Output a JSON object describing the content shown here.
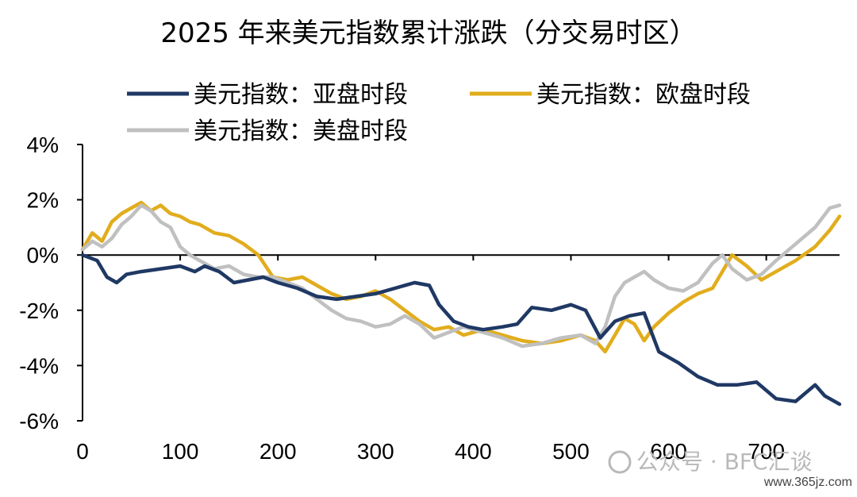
{
  "title": "2025 年来美元指数累计涨跌（分交易时区）",
  "watermark": {
    "text": "公众号 · BFC汇谈",
    "url": "www.365jz.com"
  },
  "chart_data": {
    "type": "line",
    "title": "2025 年来美元指数累计涨跌（分交易时区）",
    "xlabel": "",
    "ylabel": "",
    "xlim": [
      0,
      775
    ],
    "ylim": [
      -6,
      4
    ],
    "xticks": [
      "0",
      "100",
      "200",
      "300",
      "400",
      "500",
      "600",
      "700"
    ],
    "yticks": [
      "4%",
      "2%",
      "0%",
      "-2%",
      "-4%",
      "-6%"
    ],
    "grid": false,
    "legend": "top",
    "series": [
      {
        "name": "美元指数：亚盘时段",
        "color": "#1f3864",
        "x": [
          0,
          15,
          25,
          35,
          45,
          60,
          80,
          100,
          115,
          125,
          140,
          155,
          170,
          185,
          200,
          220,
          240,
          260,
          280,
          300,
          320,
          340,
          355,
          365,
          380,
          395,
          410,
          430,
          445,
          460,
          480,
          500,
          515,
          530,
          545,
          560,
          575,
          590,
          610,
          630,
          650,
          670,
          690,
          710,
          730,
          740,
          750,
          760,
          775
        ],
        "y": [
          0,
          -0.2,
          -0.8,
          -1.0,
          -0.7,
          -0.6,
          -0.5,
          -0.4,
          -0.6,
          -0.4,
          -0.6,
          -1.0,
          -0.9,
          -0.8,
          -1.0,
          -1.2,
          -1.5,
          -1.6,
          -1.5,
          -1.4,
          -1.2,
          -1.0,
          -1.1,
          -1.8,
          -2.4,
          -2.6,
          -2.7,
          -2.6,
          -2.5,
          -1.9,
          -2.0,
          -1.8,
          -2.0,
          -3.0,
          -2.4,
          -2.2,
          -2.1,
          -3.5,
          -3.9,
          -4.4,
          -4.7,
          -4.7,
          -4.6,
          -5.2,
          -5.3,
          -5.0,
          -4.7,
          -5.1,
          -5.4
        ]
      },
      {
        "name": "美元指数：欧盘时段",
        "color": "#e1ad1d",
        "x": [
          0,
          10,
          20,
          30,
          40,
          50,
          60,
          70,
          80,
          90,
          100,
          110,
          120,
          135,
          150,
          165,
          180,
          195,
          210,
          225,
          240,
          255,
          270,
          285,
          300,
          315,
          330,
          345,
          360,
          375,
          390,
          410,
          430,
          450,
          470,
          490,
          510,
          525,
          535,
          545,
          555,
          565,
          575,
          585,
          600,
          615,
          630,
          645,
          655,
          665,
          680,
          695,
          710,
          730,
          750,
          765,
          775
        ],
        "y": [
          0.2,
          0.8,
          0.5,
          1.2,
          1.5,
          1.7,
          1.9,
          1.6,
          1.8,
          1.5,
          1.4,
          1.2,
          1.1,
          0.8,
          0.7,
          0.4,
          0.0,
          -0.8,
          -0.9,
          -0.8,
          -1.1,
          -1.4,
          -1.6,
          -1.5,
          -1.3,
          -1.6,
          -2.0,
          -2.4,
          -2.7,
          -2.6,
          -2.9,
          -2.7,
          -2.9,
          -3.1,
          -3.2,
          -3.1,
          -2.9,
          -3.1,
          -3.5,
          -2.9,
          -2.3,
          -2.5,
          -3.1,
          -2.6,
          -2.1,
          -1.7,
          -1.4,
          -1.2,
          -0.6,
          0.0,
          -0.4,
          -0.9,
          -0.6,
          -0.2,
          0.3,
          0.9,
          1.4
        ]
      },
      {
        "name": "美元指数：美盘时段",
        "color": "#c0c0c0",
        "x": [
          0,
          10,
          20,
          30,
          40,
          50,
          60,
          70,
          80,
          90,
          100,
          110,
          120,
          135,
          150,
          165,
          180,
          195,
          210,
          225,
          240,
          255,
          270,
          285,
          300,
          315,
          330,
          345,
          360,
          375,
          390,
          410,
          430,
          450,
          470,
          490,
          510,
          525,
          535,
          545,
          555,
          565,
          575,
          585,
          600,
          615,
          630,
          645,
          655,
          665,
          680,
          695,
          710,
          730,
          750,
          765,
          775
        ],
        "y": [
          0.2,
          0.5,
          0.3,
          0.6,
          1.1,
          1.4,
          1.8,
          1.6,
          1.2,
          1.0,
          0.3,
          0.0,
          -0.2,
          -0.5,
          -0.4,
          -0.7,
          -0.8,
          -0.8,
          -1.0,
          -1.2,
          -1.6,
          -2.0,
          -2.3,
          -2.4,
          -2.6,
          -2.5,
          -2.2,
          -2.5,
          -3.0,
          -2.8,
          -2.6,
          -2.8,
          -3.0,
          -3.3,
          -3.2,
          -3.0,
          -2.9,
          -3.2,
          -2.6,
          -1.5,
          -1.0,
          -0.8,
          -0.6,
          -0.9,
          -1.2,
          -1.3,
          -1.0,
          -0.3,
          0.0,
          -0.5,
          -0.9,
          -0.7,
          -0.2,
          0.4,
          1.0,
          1.7,
          1.8
        ]
      }
    ]
  }
}
